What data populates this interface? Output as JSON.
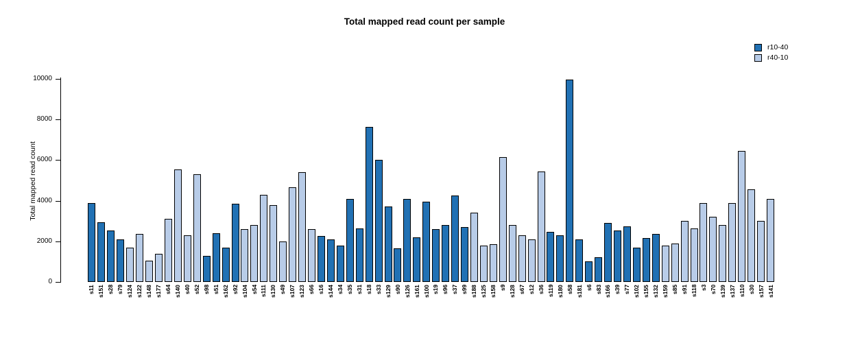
{
  "chart_data": {
    "type": "bar",
    "title": "Total mapped read count per sample",
    "xlabel": "",
    "ylabel": "Total mapped read count",
    "ylim": [
      0,
      10000
    ],
    "yticks": [
      0,
      2000,
      4000,
      6000,
      8000,
      10000
    ],
    "grid": false,
    "legend_position": "top-right",
    "legend": [
      {
        "name": "r10-40",
        "color": "#2171B4"
      },
      {
        "name": "r40-10",
        "color": "#B8CCE8"
      }
    ],
    "series_colors": {
      "r10-40": "#2171B4",
      "r40-10": "#B8CCE8"
    },
    "bars": [
      {
        "label": "s11",
        "value": 3900,
        "series": "r10-40"
      },
      {
        "label": "s151",
        "value": 2950,
        "series": "r10-40"
      },
      {
        "label": "s28",
        "value": 2550,
        "series": "r10-40"
      },
      {
        "label": "s79",
        "value": 2100,
        "series": "r10-40"
      },
      {
        "label": "s124",
        "value": 1700,
        "series": "r40-10"
      },
      {
        "label": "s122",
        "value": 2350,
        "series": "r40-10"
      },
      {
        "label": "s148",
        "value": 1050,
        "series": "r40-10"
      },
      {
        "label": "s177",
        "value": 1400,
        "series": "r40-10"
      },
      {
        "label": "s64",
        "value": 3100,
        "series": "r40-10"
      },
      {
        "label": "s140",
        "value": 5550,
        "series": "r40-10"
      },
      {
        "label": "s40",
        "value": 2300,
        "series": "r40-10"
      },
      {
        "label": "s52",
        "value": 5300,
        "series": "r40-10"
      },
      {
        "label": "s98",
        "value": 1300,
        "series": "r10-40"
      },
      {
        "label": "s51",
        "value": 2400,
        "series": "r10-40"
      },
      {
        "label": "s162",
        "value": 1700,
        "series": "r10-40"
      },
      {
        "label": "s92",
        "value": 3850,
        "series": "r10-40"
      },
      {
        "label": "s104",
        "value": 2600,
        "series": "r40-10"
      },
      {
        "label": "s54",
        "value": 2800,
        "series": "r40-10"
      },
      {
        "label": "s111",
        "value": 4300,
        "series": "r40-10"
      },
      {
        "label": "s130",
        "value": 3800,
        "series": "r40-10"
      },
      {
        "label": "s49",
        "value": 2000,
        "series": "r40-10"
      },
      {
        "label": "s107",
        "value": 4650,
        "series": "r40-10"
      },
      {
        "label": "s123",
        "value": 5400,
        "series": "r40-10"
      },
      {
        "label": "s66",
        "value": 2600,
        "series": "r40-10"
      },
      {
        "label": "s16",
        "value": 2250,
        "series": "r10-40"
      },
      {
        "label": "s144",
        "value": 2100,
        "series": "r10-40"
      },
      {
        "label": "s34",
        "value": 1800,
        "series": "r10-40"
      },
      {
        "label": "s35",
        "value": 4100,
        "series": "r10-40"
      },
      {
        "label": "s31",
        "value": 2650,
        "series": "r10-40"
      },
      {
        "label": "s18",
        "value": 7650,
        "series": "r10-40"
      },
      {
        "label": "s33",
        "value": 6000,
        "series": "r10-40"
      },
      {
        "label": "s129",
        "value": 3700,
        "series": "r10-40"
      },
      {
        "label": "s90",
        "value": 1650,
        "series": "r10-40"
      },
      {
        "label": "s126",
        "value": 4100,
        "series": "r10-40"
      },
      {
        "label": "s161",
        "value": 2200,
        "series": "r10-40"
      },
      {
        "label": "s100",
        "value": 3950,
        "series": "r10-40"
      },
      {
        "label": "s19",
        "value": 2600,
        "series": "r10-40"
      },
      {
        "label": "s96",
        "value": 2800,
        "series": "r10-40"
      },
      {
        "label": "s37",
        "value": 4250,
        "series": "r10-40"
      },
      {
        "label": "s99",
        "value": 2700,
        "series": "r10-40"
      },
      {
        "label": "s188",
        "value": 3400,
        "series": "r40-10"
      },
      {
        "label": "s125",
        "value": 1800,
        "series": "r40-10"
      },
      {
        "label": "s158",
        "value": 1850,
        "series": "r40-10"
      },
      {
        "label": "s9",
        "value": 6150,
        "series": "r40-10"
      },
      {
        "label": "s128",
        "value": 2800,
        "series": "r40-10"
      },
      {
        "label": "s67",
        "value": 2300,
        "series": "r40-10"
      },
      {
        "label": "s12",
        "value": 2100,
        "series": "r40-10"
      },
      {
        "label": "s36",
        "value": 5450,
        "series": "r40-10"
      },
      {
        "label": "s119",
        "value": 2450,
        "series": "r10-40"
      },
      {
        "label": "s180",
        "value": 2300,
        "series": "r10-40"
      },
      {
        "label": "s58",
        "value": 9950,
        "series": "r10-40"
      },
      {
        "label": "s181",
        "value": 2100,
        "series": "r10-40"
      },
      {
        "label": "s6",
        "value": 1000,
        "series": "r10-40"
      },
      {
        "label": "s83",
        "value": 1200,
        "series": "r10-40"
      },
      {
        "label": "s166",
        "value": 2900,
        "series": "r10-40"
      },
      {
        "label": "s39",
        "value": 2550,
        "series": "r10-40"
      },
      {
        "label": "s77",
        "value": 2750,
        "series": "r10-40"
      },
      {
        "label": "s102",
        "value": 1700,
        "series": "r10-40"
      },
      {
        "label": "s155",
        "value": 2150,
        "series": "r10-40"
      },
      {
        "label": "s132",
        "value": 2350,
        "series": "r10-40"
      },
      {
        "label": "s159",
        "value": 1800,
        "series": "r40-10"
      },
      {
        "label": "s85",
        "value": 1900,
        "series": "r40-10"
      },
      {
        "label": "s91",
        "value": 3000,
        "series": "r40-10"
      },
      {
        "label": "s118",
        "value": 2650,
        "series": "r40-10"
      },
      {
        "label": "s3",
        "value": 3900,
        "series": "r40-10"
      },
      {
        "label": "s70",
        "value": 3200,
        "series": "r40-10"
      },
      {
        "label": "s139",
        "value": 2800,
        "series": "r40-10"
      },
      {
        "label": "s137",
        "value": 3900,
        "series": "r40-10"
      },
      {
        "label": "s110",
        "value": 6450,
        "series": "r40-10"
      },
      {
        "label": "s30",
        "value": 4550,
        "series": "r40-10"
      },
      {
        "label": "s157",
        "value": 3000,
        "series": "r40-10"
      },
      {
        "label": "s141",
        "value": 4100,
        "series": "r40-10"
      }
    ]
  }
}
